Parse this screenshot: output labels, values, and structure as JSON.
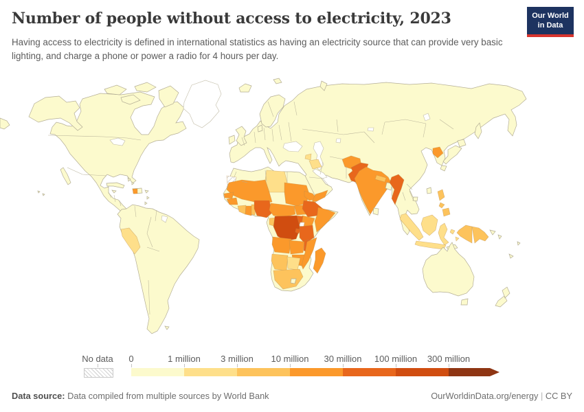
{
  "header": {
    "title": "Number of people without access to electricity, 2023",
    "subtitle": "Having access to electricity is defined in international statistics as having an electricity source that can provide very basic lighting, and charge a phone or power a radio for 4 hours per day.",
    "logo": {
      "line1": "Our World",
      "line2": "in Data",
      "bg": "#1d3360",
      "accent": "#d8352e"
    }
  },
  "legend": {
    "no_data_label": "No data",
    "ticks": [
      "0",
      "1 million",
      "3 million",
      "10 million",
      "30 million",
      "100 million",
      "300 million"
    ],
    "colors": [
      "#fcfacd",
      "#fedf8a",
      "#fdc35c",
      "#fb992b",
      "#e8671c",
      "#d04d10",
      "#8e3513"
    ]
  },
  "footer": {
    "source_label": "Data source:",
    "source_text": " Data compiled from multiple sources by World Bank",
    "right_url": "OurWorldinData.org/energy",
    "separator": " | ",
    "license": "CC BY"
  },
  "map": {
    "ocean": "#ffffff",
    "border": "#b3ad95",
    "regions": {
      "land": "#fcfacd",
      "water": "#ffffff",
      "no-data": "#ffffff",
      "western-sahara": "hatch",
      "peru": "#fedf8a",
      "libya": "#fedf8a",
      "syria": "#fedf8a",
      "iraq": "#fedf8a",
      "botswana": "#fedf8a",
      "indonesia": "#fedf8a",
      "namibia": "#fdc35c",
      "south-africa": "#fdc35c",
      "cote-divoire": "#fdc35c",
      "togo-benin": "#fdc35c",
      "congo": "#fdc35c",
      "nepal": "#fdc35c",
      "philippines": "#fdc35c",
      "new-guinea-west": "#fdc35c",
      "new-guinea-east": "#fdc35c",
      "sahel": "#fb992b",
      "sudan": "#fb992b",
      "south-sudan": "#fb992b",
      "eritrea": "#fb992b",
      "somalia": "#fb992b",
      "kenya": "#fb992b",
      "guinea": "#fb992b",
      "senegal": "#fb992b",
      "ghana": "#fb992b",
      "cameroon-car": "#fb992b",
      "angola": "#fb992b",
      "zambia": "#fb992b",
      "zimbabwe": "#fb992b",
      "mozambique": "#fb992b",
      "madagascar": "#fb992b",
      "yemen": "#fb992b",
      "afghanistan": "#fb992b",
      "india": "#fb992b",
      "north-korea": "#fb992b",
      "haiti": "#fb992b",
      "nigeria": "#e8671c",
      "ethiopia": "#e8671c",
      "uganda": "#e8671c",
      "tanzania": "#e8671c",
      "malawi": "#e8671c",
      "rwanda-burundi": "#e8671c",
      "pakistan": "#e8671c",
      "myanmar": "#e8671c",
      "drc": "#d04d10"
    }
  },
  "chart_data": {
    "type": "choropleth_map",
    "title": "Number of people without access to electricity, 2023",
    "subtitle": "Having access to electricity is defined in international statistics as having an electricity source that can provide very basic lighting, and charge a phone or power a radio for 4 hours per day.",
    "legend_buckets": [
      {
        "label": "No data",
        "color": "hatched-gray"
      },
      {
        "range": "0-1 million",
        "color": "#fcfacd"
      },
      {
        "range": "1-3 million",
        "color": "#fedf8a"
      },
      {
        "range": "3-10 million",
        "color": "#fdc35c"
      },
      {
        "range": "10-30 million",
        "color": "#fb992b"
      },
      {
        "range": "30-100 million",
        "color": "#e8671c"
      },
      {
        "range": "100-300 million",
        "color": "#d04d10"
      },
      {
        "range": "300 million+",
        "color": "#8e3513"
      }
    ],
    "countries_by_bucket": {
      "0-1 million": [
        "United States",
        "Canada",
        "Mexico",
        "Brazil",
        "Argentina",
        "Chile",
        "Europe",
        "Russia",
        "China",
        "Japan",
        "South Korea",
        "Australia",
        "New Zealand",
        "Saudi Arabia",
        "Iran",
        "Turkey",
        "Egypt",
        "Morocco",
        "Algeria",
        "Thailand",
        "Vietnam",
        "Malaysia",
        "Bangladesh",
        "Sri Lanka",
        "Cuba"
      ],
      "1-3 million": [
        "Peru",
        "Libya",
        "Indonesia",
        "Iraq",
        "Syria",
        "Botswana",
        "Timor-Leste"
      ],
      "3-10 million": [
        "Namibia",
        "South Africa",
        "Cote d'Ivoire",
        "Togo",
        "Benin",
        "Congo",
        "Nepal",
        "Philippines",
        "Papua New Guinea"
      ],
      "10-30 million": [
        "Haiti",
        "Mauritania",
        "Senegal",
        "Guinea",
        "Ghana",
        "Mali",
        "Burkina Faso",
        "Niger",
        "Chad",
        "Sudan",
        "South Sudan",
        "Eritrea",
        "Somalia",
        "Kenya",
        "Cameroon",
        "Central African Republic",
        "Angola",
        "Zambia",
        "Zimbabwe",
        "Mozambique",
        "Madagascar",
        "Yemen",
        "Afghanistan",
        "India",
        "North Korea"
      ],
      "30-100 million": [
        "Nigeria",
        "Ethiopia",
        "Uganda",
        "Tanzania",
        "Malawi",
        "Pakistan",
        "Myanmar"
      ],
      "100-300 million": [
        "Democratic Republic of Congo"
      ]
    },
    "no_data_regions": [
      "Greenland",
      "Western Sahara",
      "French Guiana"
    ]
  }
}
